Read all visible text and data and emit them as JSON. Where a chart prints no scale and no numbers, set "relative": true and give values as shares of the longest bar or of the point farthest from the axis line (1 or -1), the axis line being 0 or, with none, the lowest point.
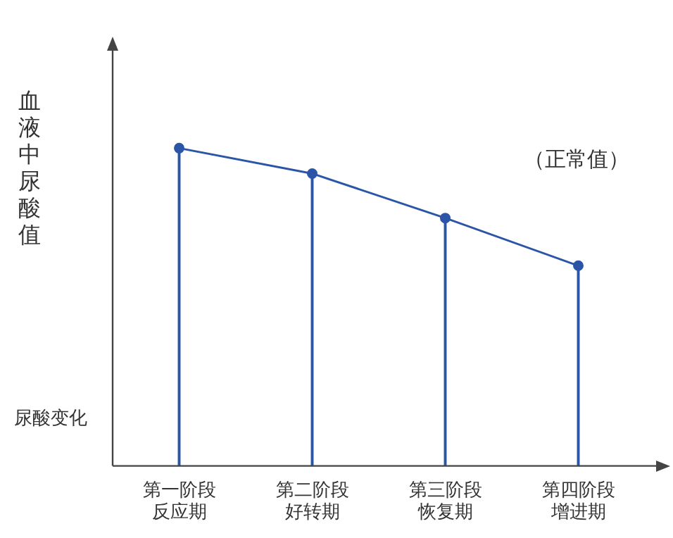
{
  "chart_data": {
    "type": "line",
    "relative": true,
    "ylabel": "血液中尿酸值",
    "xlabel": "尿酸变化",
    "annotations": [
      "（正常值）"
    ],
    "categories": [
      "第一阶段反应期",
      "第二阶段好转期",
      "第三阶段恢复期",
      "第四阶段增进期"
    ],
    "series": [
      {
        "color": "#2b55a6",
        "values": [
          1,
          0.92,
          0.78,
          0.63
        ]
      },
      {
        "type": "bar",
        "color": "#2b55a6",
        "values": [
          1,
          0.92,
          0.78,
          0.63
        ]
      }
    ],
    "marker": "circle",
    "grid": false,
    "legend": false
  }
}
